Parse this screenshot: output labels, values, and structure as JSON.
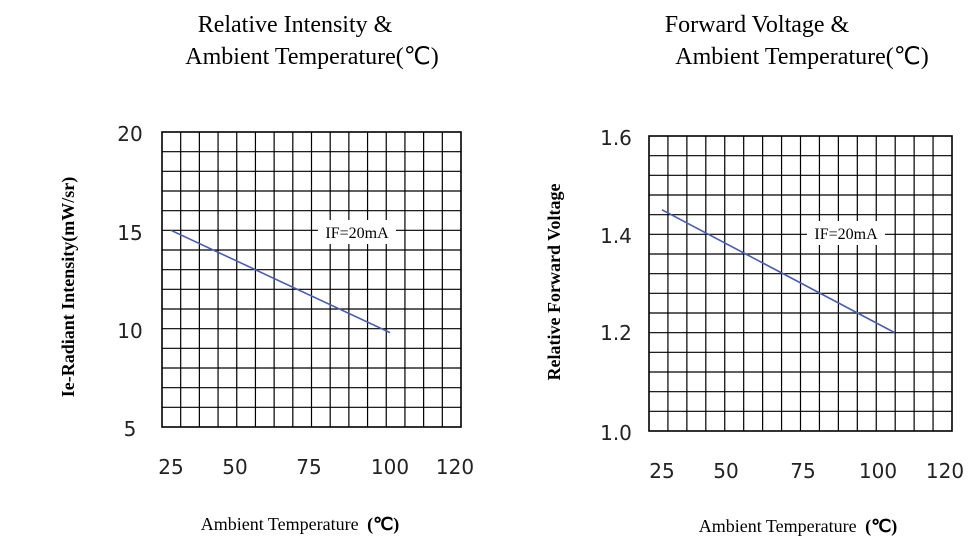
{
  "chart_data": [
    {
      "type": "line",
      "title_lines": [
        "Relative Intensity &",
        "Ambient Temperature(℃)"
      ],
      "xlabel": "Ambient Temperature",
      "xlabel_unit": "(℃)",
      "ylabel": "Ie-Radiant Intensity(mW/sr)",
      "x_ticks": [
        "25",
        "50",
        "75",
        "100",
        "120"
      ],
      "y_ticks": [
        "20",
        "15",
        "10",
        "5"
      ],
      "ylim": [
        5,
        20
      ],
      "grid": true,
      "annotation": "IF=20mA",
      "series": [
        {
          "x": [
            25,
            100
          ],
          "y": [
            15,
            9.8
          ]
        }
      ]
    },
    {
      "type": "line",
      "title_lines": [
        "Forward Voltage &",
        "Ambient Temperature(℃)"
      ],
      "xlabel": "Ambient Temperature",
      "xlabel_unit": "(℃)",
      "ylabel": "Relative Forward Voltage",
      "x_ticks": [
        "25",
        "50",
        "75",
        "100",
        "120"
      ],
      "y_ticks": [
        "1.6",
        "1.4",
        "1.2",
        "1.0"
      ],
      "ylim": [
        1.0,
        1.6
      ],
      "grid": true,
      "annotation": "IF=20mA",
      "series": [
        {
          "x": [
            25,
            105
          ],
          "y": [
            1.45,
            1.2
          ]
        }
      ]
    }
  ]
}
